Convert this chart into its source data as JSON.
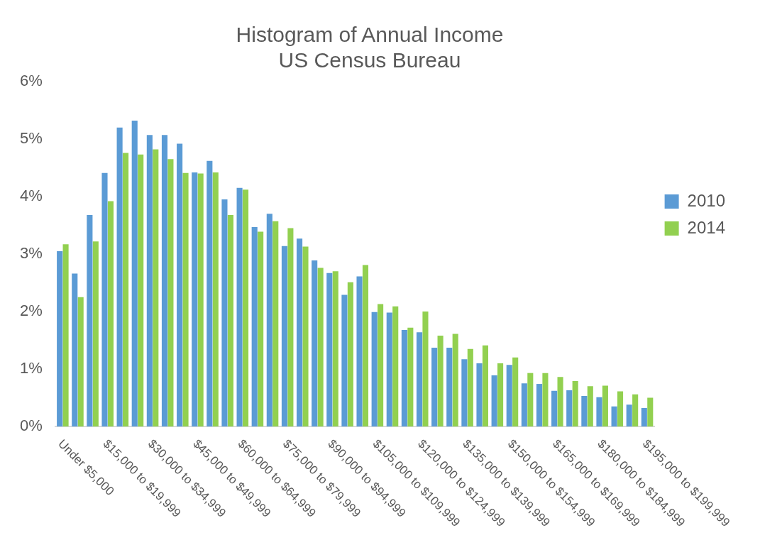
{
  "chart_data": {
    "type": "bar",
    "title": "Histogram of Annual Income\nUS Census Bureau",
    "categories": [
      "Under $5,000",
      null,
      null,
      "$15,000 to $19,999",
      null,
      null,
      "$30,000 to $34,999",
      null,
      null,
      "$45,000 to $49,999",
      null,
      null,
      "$60,000 to $64,999",
      null,
      null,
      "$75,000 to $79,999",
      null,
      null,
      "$90,000 to $94,999",
      null,
      null,
      "$105,000 to $109,999",
      null,
      null,
      "$120,000 to $124,999",
      null,
      null,
      "$135,000 to $139,999",
      null,
      null,
      "$150,000 to $154,999",
      null,
      null,
      "$165,000 to $169,999",
      null,
      null,
      "$180,000 to $184,999",
      null,
      null,
      "$195,000 to $199,999"
    ],
    "series": [
      {
        "name": "2010",
        "color": "#5b9bd5",
        "values": [
          3.05,
          2.66,
          3.68,
          4.41,
          5.2,
          5.32,
          5.07,
          5.07,
          4.92,
          4.42,
          4.62,
          3.95,
          4.15,
          3.47,
          3.7,
          3.14,
          3.27,
          2.89,
          2.67,
          2.29,
          2.61,
          1.99,
          1.98,
          1.68,
          1.64,
          1.37,
          1.37,
          1.17,
          1.1,
          0.89,
          1.07,
          0.75,
          0.74,
          0.62,
          0.63,
          0.53,
          0.51,
          0.35,
          0.38,
          0.32
        ]
      },
      {
        "name": "2014",
        "color": "#92d050",
        "values": [
          3.17,
          2.25,
          3.22,
          3.92,
          4.76,
          4.73,
          4.82,
          4.65,
          4.41,
          4.4,
          4.42,
          3.68,
          4.12,
          3.39,
          3.57,
          3.45,
          3.13,
          2.76,
          2.7,
          2.51,
          2.81,
          2.13,
          2.09,
          1.72,
          2.0,
          1.58,
          1.61,
          1.35,
          1.41,
          1.1,
          1.2,
          0.93,
          0.93,
          0.86,
          0.79,
          0.7,
          0.71,
          0.61,
          0.56,
          0.5
        ]
      }
    ],
    "ylim": [
      0,
      6
    ],
    "yticks": [
      {
        "value": 0,
        "label": "0%"
      },
      {
        "value": 1,
        "label": "1%"
      },
      {
        "value": 2,
        "label": "2%"
      },
      {
        "value": 3,
        "label": "3%"
      },
      {
        "value": 4,
        "label": "4%"
      },
      {
        "value": 5,
        "label": "5%"
      },
      {
        "value": 6,
        "label": "6%"
      }
    ],
    "grid": false,
    "legend": "right"
  }
}
